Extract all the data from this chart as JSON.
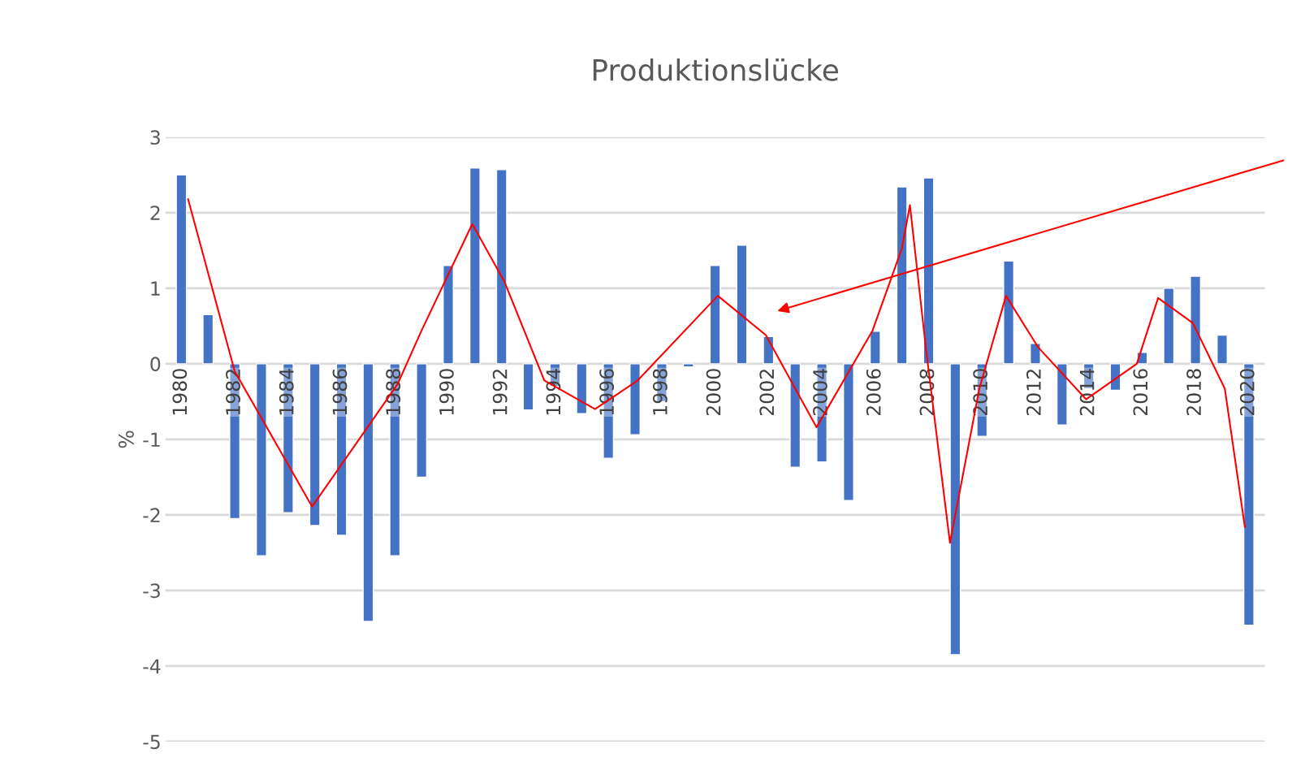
{
  "chart_data": {
    "type": "bar",
    "title": "Produktionslücke",
    "ylabel": "%",
    "x": [
      1980,
      1981,
      1982,
      1983,
      1984,
      1985,
      1986,
      1987,
      1988,
      1989,
      1990,
      1991,
      1992,
      1993,
      1994,
      1995,
      1996,
      1997,
      1998,
      1999,
      2000,
      2001,
      2002,
      2003,
      2004,
      2005,
      2006,
      2007,
      2008,
      2009,
      2010,
      2011,
      2012,
      2013,
      2014,
      2015,
      2016,
      2017,
      2018,
      2019,
      2020
    ],
    "series": [
      {
        "color": "#4472c4",
        "values": [
          2.5,
          0.65,
          -2.05,
          -2.54,
          -1.97,
          -2.14,
          -2.27,
          -3.41,
          -2.54,
          -1.5,
          1.3,
          2.59,
          2.57,
          -0.61,
          -0.3,
          -0.66,
          -1.25,
          -0.94,
          -0.5,
          -0.04,
          1.3,
          1.57,
          0.36,
          -1.37,
          -1.3,
          -1.81,
          0.43,
          2.34,
          2.46,
          -3.85,
          -0.96,
          1.36,
          0.27,
          -0.81,
          -0.33,
          -0.35,
          0.15,
          1.0,
          1.16,
          0.38,
          -3.46
        ]
      },
      {
        "type": "line",
        "color": "#ff0000",
        "x": [
          1980.25,
          1982,
          1984.9,
          1988.1,
          1989,
          1990.9,
          1992.1,
          1993.6,
          1995.5,
          1997.1,
          2000.1,
          2001.9,
          2003.8,
          2005.9,
          2007,
          2007.3,
          2007.9,
          2008.8,
          2009.9,
          2010.9,
          2012.1,
          2013.9,
          2015.8,
          2016.6,
          2017.9,
          2019.1,
          2019.85
        ],
        "values": [
          2.18,
          -0.1,
          -1.89,
          -0.27,
          0.44,
          1.85,
          1.09,
          -0.22,
          -0.6,
          -0.22,
          0.9,
          0.38,
          -0.84,
          0.44,
          1.53,
          2.1,
          0.2,
          -2.37,
          -0.33,
          0.9,
          0.22,
          -0.47,
          0,
          0.87,
          0.54,
          -0.33,
          -2.16
        ]
      }
    ],
    "xlim": [
      1979.4,
      2020.6
    ],
    "xticks": [
      1980,
      1982,
      1984,
      1986,
      1988,
      1990,
      1992,
      1994,
      1996,
      1998,
      2000,
      2002,
      2004,
      2006,
      2008,
      2010,
      2012,
      2014,
      2016,
      2018,
      2020
    ],
    "ylim": [
      -5,
      3
    ],
    "yticks": [
      -5,
      -4,
      -3,
      -2,
      -1,
      0,
      1,
      2,
      3
    ],
    "grid": "y"
  }
}
